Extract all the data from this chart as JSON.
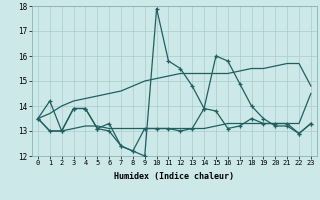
{
  "xlabel": "Humidex (Indice chaleur)",
  "xlim": [
    -0.5,
    23.5
  ],
  "ylim": [
    12,
    18
  ],
  "yticks": [
    12,
    13,
    14,
    15,
    16,
    17,
    18
  ],
  "xticks": [
    0,
    1,
    2,
    3,
    4,
    5,
    6,
    7,
    8,
    9,
    10,
    11,
    12,
    13,
    14,
    15,
    16,
    17,
    18,
    19,
    20,
    21,
    22,
    23
  ],
  "bg_color": "#cce8e8",
  "grid_color": "#aacccc",
  "line_color": "#206060",
  "line_upper": [
    13.5,
    13.7,
    14.0,
    14.2,
    14.3,
    14.4,
    14.5,
    14.6,
    14.8,
    15.0,
    15.1,
    15.2,
    15.3,
    15.3,
    15.3,
    15.3,
    15.3,
    15.4,
    15.5,
    15.5,
    15.6,
    15.7,
    15.7,
    14.8
  ],
  "line_lower": [
    13.5,
    13.0,
    13.0,
    13.1,
    13.2,
    13.2,
    13.1,
    13.1,
    13.1,
    13.1,
    13.1,
    13.1,
    13.1,
    13.1,
    13.1,
    13.2,
    13.3,
    13.3,
    13.3,
    13.3,
    13.3,
    13.3,
    13.3,
    14.5
  ],
  "line_spike": [
    13.5,
    14.2,
    13.0,
    13.9,
    13.9,
    13.1,
    13.3,
    12.4,
    12.2,
    12.0,
    17.9,
    15.8,
    15.5,
    14.8,
    13.9,
    16.0,
    15.8,
    14.9,
    14.0,
    13.5,
    13.2,
    13.2,
    12.9,
    13.3
  ],
  "line_mid": [
    13.5,
    13.0,
    13.0,
    13.9,
    13.9,
    13.1,
    13.0,
    12.4,
    12.2,
    13.1,
    13.1,
    13.1,
    13.0,
    13.1,
    13.9,
    13.8,
    13.1,
    13.2,
    13.5,
    13.3,
    13.3,
    13.3,
    12.9,
    13.3
  ]
}
